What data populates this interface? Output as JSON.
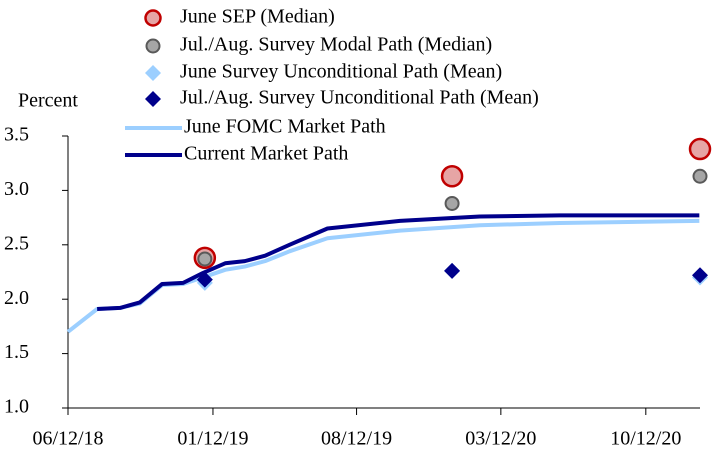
{
  "chart_data": {
    "type": "line",
    "y_label": "Percent",
    "xlim": [
      "2018-06-12",
      "2020-12-31"
    ],
    "xticks": [
      {
        "value": "2018-06-12",
        "label": "06/12/18"
      },
      {
        "value": "2019-01-12",
        "label": "01/12/19"
      },
      {
        "value": "2019-08-12",
        "label": "08/12/19"
      },
      {
        "value": "2020-03-12",
        "label": "03/12/20"
      },
      {
        "value": "2020-10-12",
        "label": "10/12/20"
      }
    ],
    "ylim": [
      1.0,
      3.5
    ],
    "yticks": [
      {
        "value": 1.0,
        "label": "1.0"
      },
      1.5,
      {
        "value": 2.0,
        "label": "2.0"
      },
      2.5,
      {
        "value": 3.0,
        "label": "3.0"
      },
      3.5
    ],
    "series": [
      {
        "name": "June SEP (Median)",
        "type": "scatter",
        "marker": "circle",
        "color": "#e6a5a5",
        "edge": "#c00000",
        "x": [
          "2018-12-31",
          "2019-12-31",
          "2020-12-31"
        ],
        "values": [
          2.38,
          3.13,
          3.38
        ]
      },
      {
        "name": "Jul./Aug. Survey Modal Path (Median)",
        "type": "scatter",
        "marker": "dot",
        "color": "#a6a6a6",
        "edge": "#595959",
        "x": [
          "2018-12-31",
          "2019-12-31",
          "2020-12-31"
        ],
        "values": [
          2.37,
          2.88,
          3.13
        ]
      },
      {
        "name": "June Survey Unconditional Path (Mean)",
        "type": "scatter",
        "marker": "diamond",
        "color": "#9ccfff",
        "x": [
          "2018-12-31",
          "2019-12-31",
          "2020-12-31"
        ],
        "values": [
          2.15,
          2.26,
          2.2
        ]
      },
      {
        "name": "Jul./Aug. Survey Unconditional Path (Mean)",
        "type": "scatter",
        "marker": "diamond",
        "color": "#00008b",
        "x": [
          "2018-12-31",
          "2019-12-31",
          "2020-12-31"
        ],
        "values": [
          2.18,
          2.26,
          2.22
        ]
      },
      {
        "name": "June FOMC Market Path",
        "type": "line",
        "color": "#9ccfff",
        "x": [
          "2018-06-12",
          "2018-07-25",
          "2018-08-28",
          "2018-09-26",
          "2018-10-29",
          "2018-11-29",
          "2018-12-28",
          "2019-01-30",
          "2019-02-28",
          "2019-03-30",
          "2019-05-05",
          "2019-06-30",
          "2019-10-15",
          "2020-02-10",
          "2020-06-07",
          "2020-12-30"
        ],
        "values": [
          1.7,
          1.91,
          1.92,
          1.96,
          2.13,
          2.14,
          2.2,
          2.27,
          2.3,
          2.35,
          2.44,
          2.56,
          2.63,
          2.68,
          2.7,
          2.72
        ]
      },
      {
        "name": "Current Market Path",
        "type": "line",
        "color": "#00008b",
        "x": [
          "2018-06-12",
          "2018-07-25",
          "2018-08-28",
          "2018-09-26",
          "2018-10-29",
          "2018-11-29",
          "2018-12-28",
          "2019-01-30",
          "2019-02-28",
          "2019-03-30",
          "2019-05-05",
          "2019-06-30",
          "2019-10-15",
          "2020-02-10",
          "2020-06-07",
          "2020-12-30"
        ],
        "values": [
          null,
          1.91,
          1.92,
          1.97,
          2.14,
          2.15,
          2.24,
          2.33,
          2.35,
          2.4,
          2.5,
          2.65,
          2.72,
          2.76,
          2.77,
          2.77
        ]
      }
    ]
  }
}
